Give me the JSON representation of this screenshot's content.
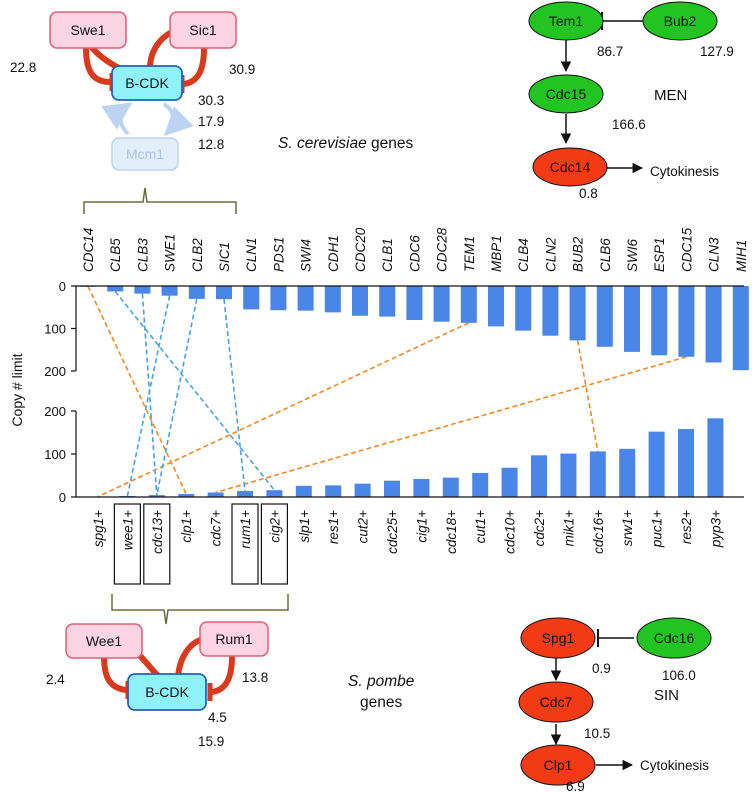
{
  "chart_data": [
    {
      "type": "bar",
      "organism": "S. cerevisiae",
      "categories": [
        "CDC14",
        "CLB5",
        "CLB3",
        "SWE1",
        "CLB2",
        "SIC1",
        "CLN1",
        "PDS1",
        "SWI4",
        "CDH1",
        "CDC20",
        "CLB1",
        "CDC6",
        "CDC28",
        "TEM1",
        "MBP1",
        "CLB4",
        "CLN2",
        "BUB2",
        "CLB6",
        "SWI6",
        "ESP1",
        "CDC15",
        "CLN3",
        "MIH1"
      ],
      "values": [
        0.8,
        12.8,
        17.9,
        22.8,
        30.3,
        30.9,
        55,
        57,
        58,
        62,
        70,
        72,
        80,
        84,
        86.7,
        95,
        105,
        117,
        127.9,
        143,
        155,
        163,
        166.6,
        180,
        198
      ],
      "ylim": [
        0,
        200
      ],
      "yticks": [
        "0",
        "100",
        "200"
      ],
      "direction": "down",
      "color": "#4a86e8"
    },
    {
      "type": "bar",
      "organism": "S. pombe",
      "categories": [
        "spg1+",
        "wee1+",
        "cdc13+",
        "clp1+",
        "cdc7+",
        "rum1+",
        "cig2+",
        "slp1+",
        "res1+",
        "cut2+",
        "cdc25+",
        "cig1+",
        "cdc18+",
        "cut1+",
        "cdc10+",
        "cdc2+",
        "mik1+",
        "cdc16+",
        "srw1+",
        "puc1+",
        "res2+",
        "pyp3+"
      ],
      "values": [
        0.9,
        2.4,
        4.5,
        6.9,
        10.5,
        13.8,
        15.9,
        26,
        27,
        31,
        38,
        42,
        45,
        56,
        68,
        97,
        101,
        106.0,
        112,
        152,
        158,
        183
      ],
      "boxed": [
        "wee1+",
        "cdc13+",
        "rum1+",
        "cig2+"
      ],
      "ylim": [
        0,
        200
      ],
      "yticks": [
        "0",
        "100",
        "200"
      ],
      "direction": "up",
      "color": "#4a86e8"
    }
  ],
  "axis": {
    "ylabel": "Copy # limit"
  },
  "links": {
    "orange": [
      [
        "CDC14",
        "clp1+"
      ],
      [
        "TEM1",
        "spg1+"
      ],
      [
        "BUB2",
        "cdc16+"
      ],
      [
        "CDC15",
        "cdc7+"
      ]
    ],
    "blue": [
      [
        "CLB5",
        "cig2+"
      ],
      [
        "CLB3",
        "cdc13+"
      ],
      [
        "SWE1",
        "wee1+"
      ],
      [
        "CLB2",
        "cdc13+"
      ],
      [
        "SIC1",
        "rum1+"
      ]
    ],
    "colors": {
      "orange": "#f08a24",
      "blue": "#4aa3df"
    }
  },
  "labels": {
    "cerevisiae_italic": "S. cerevisiae",
    "cerevisiae_rest": " genes",
    "pombe_italic": "S. pombe",
    "pombe_rest": "genes"
  },
  "cer_network": {
    "swe1": "Swe1",
    "sic1": "Sic1",
    "bcdk": "B-CDK",
    "mcm1": "Mcm1",
    "n_swe1": "22.8",
    "n_sic1": "30.9",
    "n_a": "30.3",
    "n_b": "17.9",
    "n_c": "12.8"
  },
  "pom_network": {
    "wee1": "Wee1",
    "rum1": "Rum1",
    "bcdk": "B-CDK",
    "n_wee1": "2.4",
    "n_rum1": "13.8",
    "n_a": "4.5",
    "n_b": "15.9"
  },
  "men": {
    "tem1": "Tem1",
    "bub2": "Bub2",
    "cdc15": "Cdc15",
    "cdc14": "Cdc14",
    "n_tem1": "86.7",
    "n_bub2": "127.9",
    "n_cdc15": "166.6",
    "n_cdc14": "0.8",
    "title": "MEN",
    "cytokinesis": "Cytokinesis"
  },
  "sin": {
    "spg1": "Spg1",
    "cdc16": "Cdc16",
    "cdc7": "Cdc7",
    "clp1": "Clp1",
    "n_spg1": "0.9",
    "n_cdc16": "106.0",
    "n_cdc7": "10.5",
    "n_clp1": "6.9",
    "title": "SIN",
    "cytokinesis": "Cytokinesis"
  },
  "colors": {
    "pink_fill": "#fbd3e3",
    "pink_stroke": "#e0607a",
    "cyan_fill": "#8ff2f8",
    "cyan_stroke": "#2a5fc0",
    "green": "#22c422",
    "red": "#f23a14",
    "inhibit": "#d93a1e",
    "faded_fill": "#e3eefb",
    "faded_text": "#a9c4ea",
    "bracket": "#6b6b3a"
  }
}
